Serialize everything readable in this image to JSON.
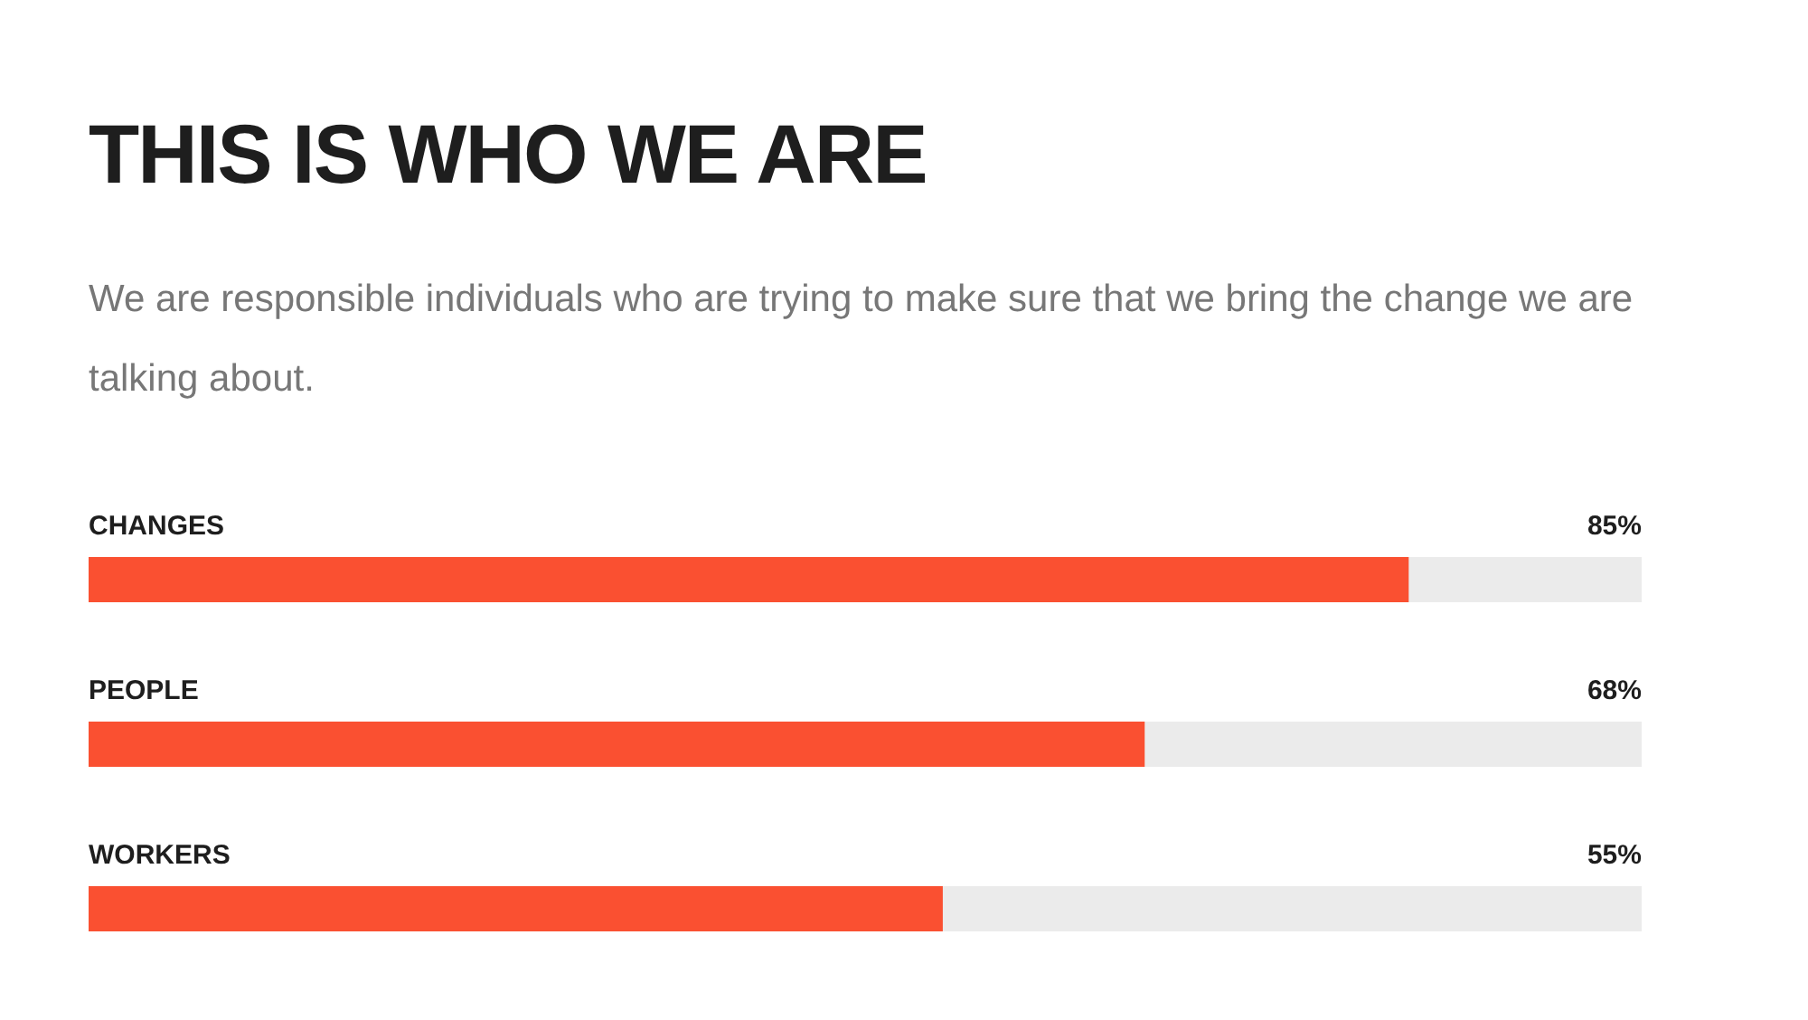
{
  "chart_data": {
    "type": "bar",
    "orientation": "horizontal",
    "title": "THIS IS WHO WE ARE",
    "subtitle": "We are responsible individuals who are trying to make sure that we bring the change we are talking about.",
    "categories": [
      "CHANGES",
      "PEOPLE",
      "WORKERS"
    ],
    "values": [
      85,
      68,
      55
    ],
    "value_labels": [
      "85%",
      "68%",
      "55%"
    ],
    "color": "#fa5031",
    "xlim": [
      0,
      100
    ],
    "tick_labels": "y"
  }
}
